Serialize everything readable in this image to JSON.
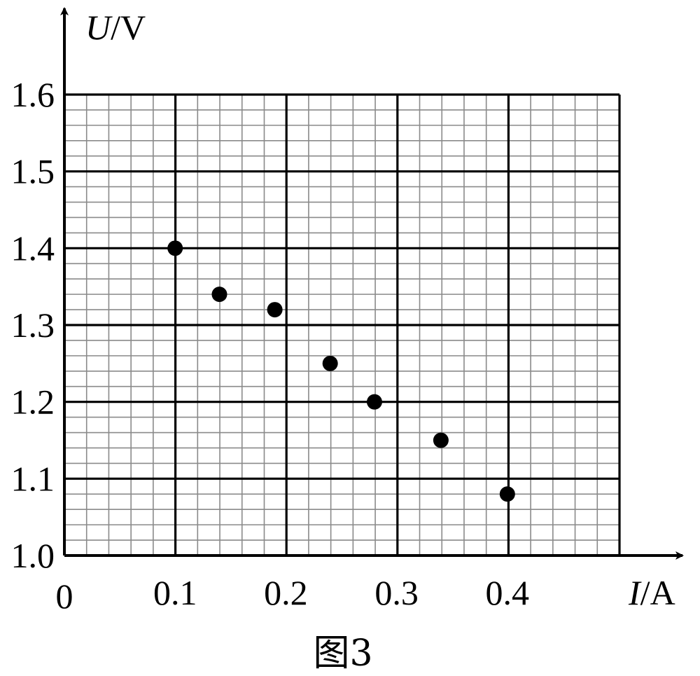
{
  "chart_data": {
    "type": "scatter",
    "x_axis": {
      "symbol": "I",
      "unit": "A",
      "min": 0,
      "max": 0.5,
      "ticks": [
        "0.1",
        "0.2",
        "0.3",
        "0.4"
      ],
      "origin_label": "0"
    },
    "y_axis": {
      "symbol": "U",
      "unit": "V",
      "min": 1.0,
      "max": 1.6,
      "ticks": [
        "1.0",
        "1.1",
        "1.2",
        "1.3",
        "1.4",
        "1.5",
        "1.6"
      ]
    },
    "grid": true,
    "points": [
      {
        "x": 0.1,
        "y": 1.4
      },
      {
        "x": 0.14,
        "y": 1.34
      },
      {
        "x": 0.19,
        "y": 1.32
      },
      {
        "x": 0.24,
        "y": 1.25
      },
      {
        "x": 0.28,
        "y": 1.2
      },
      {
        "x": 0.34,
        "y": 1.15
      },
      {
        "x": 0.4,
        "y": 1.08
      }
    ],
    "caption": "图3"
  }
}
